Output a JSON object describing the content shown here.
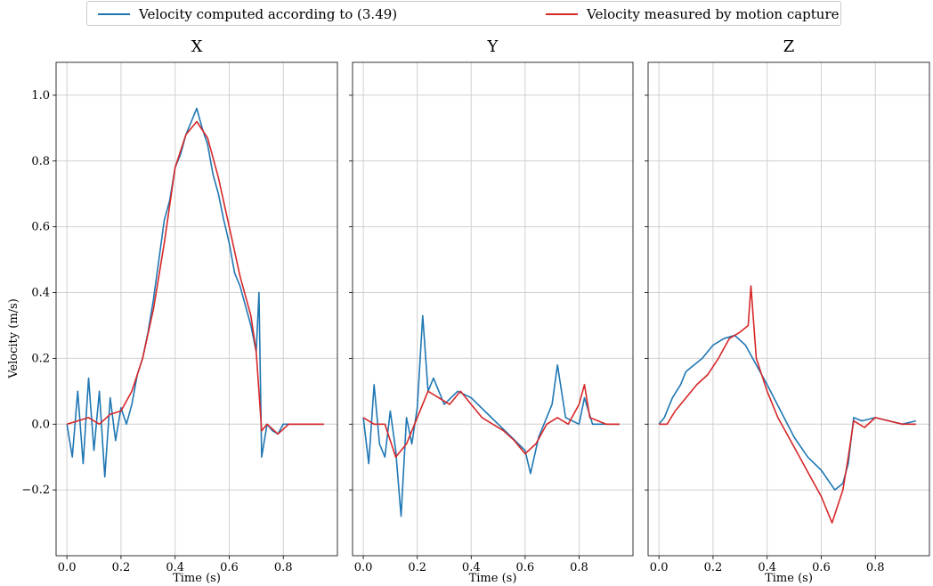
{
  "figure": {
    "ylabel": "Velocity (m/s)",
    "xlabel": "Time (s)",
    "legend": [
      {
        "label": "Velocity computed according to (3.49)",
        "color": "#1f77b4"
      },
      {
        "label": "Velocity measured by motion capture",
        "color": "#d62728"
      }
    ]
  },
  "chart_data": [
    {
      "type": "line",
      "title": "X",
      "xlabel": "Time (s)",
      "ylabel": "Velocity (m/s)",
      "xlim": [
        -0.04,
        1.0
      ],
      "ylim": [
        -0.4,
        1.1
      ],
      "xticks": [
        0.0,
        0.2,
        0.4,
        0.6,
        0.8
      ],
      "xtick_labels": [
        "0.0",
        "0.2",
        "0.4",
        "0.6",
        "0.8"
      ],
      "yticks": [
        -0.2,
        0.0,
        0.2,
        0.4,
        0.6,
        0.8,
        1.0
      ],
      "ytick_labels": [
        "−0.2",
        "0.0",
        "0.2",
        "0.4",
        "0.6",
        "0.8",
        "1.0"
      ],
      "grid": true,
      "series": [
        {
          "name": "Velocity computed according to (3.49)",
          "color": "#1f77b4",
          "x": [
            0.0,
            0.02,
            0.04,
            0.06,
            0.08,
            0.1,
            0.12,
            0.14,
            0.16,
            0.18,
            0.2,
            0.22,
            0.24,
            0.26,
            0.28,
            0.3,
            0.32,
            0.34,
            0.36,
            0.38,
            0.4,
            0.42,
            0.44,
            0.46,
            0.48,
            0.5,
            0.52,
            0.54,
            0.56,
            0.58,
            0.6,
            0.62,
            0.64,
            0.66,
            0.68,
            0.7,
            0.71,
            0.72,
            0.74,
            0.76,
            0.78,
            0.8,
            0.85,
            0.9,
            0.95
          ],
          "y": [
            0.0,
            -0.1,
            0.1,
            -0.12,
            0.14,
            -0.08,
            0.1,
            -0.16,
            0.08,
            -0.05,
            0.05,
            0.0,
            0.06,
            0.15,
            0.2,
            0.28,
            0.38,
            0.5,
            0.62,
            0.68,
            0.78,
            0.82,
            0.88,
            0.92,
            0.96,
            0.9,
            0.85,
            0.76,
            0.7,
            0.62,
            0.55,
            0.46,
            0.42,
            0.36,
            0.3,
            0.22,
            0.4,
            -0.1,
            0.0,
            -0.02,
            -0.03,
            0.0,
            0.0,
            0.0,
            0.0
          ]
        },
        {
          "name": "Velocity measured by motion capture",
          "color": "#d62728",
          "x": [
            0.0,
            0.04,
            0.08,
            0.12,
            0.16,
            0.2,
            0.24,
            0.28,
            0.32,
            0.36,
            0.4,
            0.44,
            0.48,
            0.52,
            0.56,
            0.6,
            0.64,
            0.68,
            0.7,
            0.72,
            0.74,
            0.78,
            0.82,
            0.9,
            0.95
          ],
          "y": [
            0.0,
            0.01,
            0.02,
            0.0,
            0.03,
            0.04,
            0.1,
            0.2,
            0.35,
            0.55,
            0.78,
            0.88,
            0.92,
            0.87,
            0.75,
            0.6,
            0.45,
            0.33,
            0.22,
            -0.02,
            0.0,
            -0.03,
            0.0,
            0.0,
            0.0
          ]
        }
      ]
    },
    {
      "type": "line",
      "title": "Y",
      "xlabel": "Time (s)",
      "xlim": [
        -0.04,
        1.0
      ],
      "ylim": [
        -0.4,
        1.1
      ],
      "xticks": [
        0.0,
        0.2,
        0.4,
        0.6,
        0.8
      ],
      "xtick_labels": [
        "0.0",
        "0.2",
        "0.4",
        "0.6",
        "0.8"
      ],
      "grid": true,
      "series": [
        {
          "name": "Velocity computed according to (3.49)",
          "color": "#1f77b4",
          "x": [
            0.0,
            0.02,
            0.04,
            0.06,
            0.08,
            0.1,
            0.12,
            0.14,
            0.16,
            0.18,
            0.2,
            0.22,
            0.24,
            0.26,
            0.3,
            0.35,
            0.4,
            0.45,
            0.5,
            0.55,
            0.6,
            0.62,
            0.65,
            0.7,
            0.72,
            0.75,
            0.8,
            0.82,
            0.85,
            0.9,
            0.95
          ],
          "y": [
            0.02,
            -0.12,
            0.12,
            -0.06,
            -0.1,
            0.04,
            -0.08,
            -0.28,
            0.02,
            -0.06,
            0.05,
            0.33,
            0.1,
            0.14,
            0.06,
            0.1,
            0.08,
            0.04,
            0.0,
            -0.04,
            -0.08,
            -0.15,
            -0.04,
            0.06,
            0.18,
            0.02,
            0.0,
            0.08,
            0.0,
            0.0,
            0.0
          ]
        },
        {
          "name": "Velocity measured by motion capture",
          "color": "#d62728",
          "x": [
            0.0,
            0.04,
            0.08,
            0.12,
            0.16,
            0.2,
            0.24,
            0.28,
            0.32,
            0.36,
            0.4,
            0.44,
            0.48,
            0.52,
            0.56,
            0.6,
            0.64,
            0.68,
            0.72,
            0.76,
            0.8,
            0.82,
            0.84,
            0.9,
            0.95
          ],
          "y": [
            0.02,
            0.0,
            0.0,
            -0.1,
            -0.06,
            0.02,
            0.1,
            0.08,
            0.06,
            0.1,
            0.06,
            0.02,
            0.0,
            -0.02,
            -0.05,
            -0.09,
            -0.06,
            0.0,
            0.02,
            0.0,
            0.06,
            0.12,
            0.02,
            0.0,
            0.0
          ]
        }
      ]
    },
    {
      "type": "line",
      "title": "Z",
      "xlabel": "Time (s)",
      "xlim": [
        -0.04,
        1.0
      ],
      "ylim": [
        -0.4,
        1.1
      ],
      "xticks": [
        0.0,
        0.2,
        0.4,
        0.6,
        0.8
      ],
      "xtick_labels": [
        "0.0",
        "0.2",
        "0.4",
        "0.6",
        "0.8"
      ],
      "grid": true,
      "series": [
        {
          "name": "Velocity computed according to (3.49)",
          "color": "#1f77b4",
          "x": [
            0.0,
            0.02,
            0.05,
            0.08,
            0.1,
            0.13,
            0.16,
            0.2,
            0.24,
            0.28,
            0.32,
            0.36,
            0.4,
            0.45,
            0.5,
            0.55,
            0.6,
            0.65,
            0.68,
            0.7,
            0.72,
            0.75,
            0.8,
            0.85,
            0.9,
            0.95
          ],
          "y": [
            0.0,
            0.02,
            0.08,
            0.12,
            0.16,
            0.18,
            0.2,
            0.24,
            0.26,
            0.27,
            0.24,
            0.18,
            0.12,
            0.04,
            -0.04,
            -0.1,
            -0.14,
            -0.2,
            -0.18,
            -0.12,
            0.02,
            0.01,
            0.02,
            0.01,
            0.0,
            0.01
          ]
        },
        {
          "name": "Velocity measured by motion capture",
          "color": "#d62728",
          "x": [
            0.0,
            0.03,
            0.06,
            0.1,
            0.14,
            0.18,
            0.22,
            0.26,
            0.3,
            0.33,
            0.34,
            0.36,
            0.4,
            0.44,
            0.48,
            0.52,
            0.56,
            0.6,
            0.64,
            0.66,
            0.68,
            0.7,
            0.72,
            0.76,
            0.8,
            0.85,
            0.9,
            0.95
          ],
          "y": [
            0.0,
            0.0,
            0.04,
            0.08,
            0.12,
            0.15,
            0.2,
            0.26,
            0.28,
            0.3,
            0.42,
            0.2,
            0.1,
            0.02,
            -0.04,
            -0.1,
            -0.16,
            -0.22,
            -0.3,
            -0.25,
            -0.2,
            -0.1,
            0.01,
            -0.01,
            0.02,
            0.01,
            0.0,
            0.0
          ]
        }
      ]
    }
  ]
}
